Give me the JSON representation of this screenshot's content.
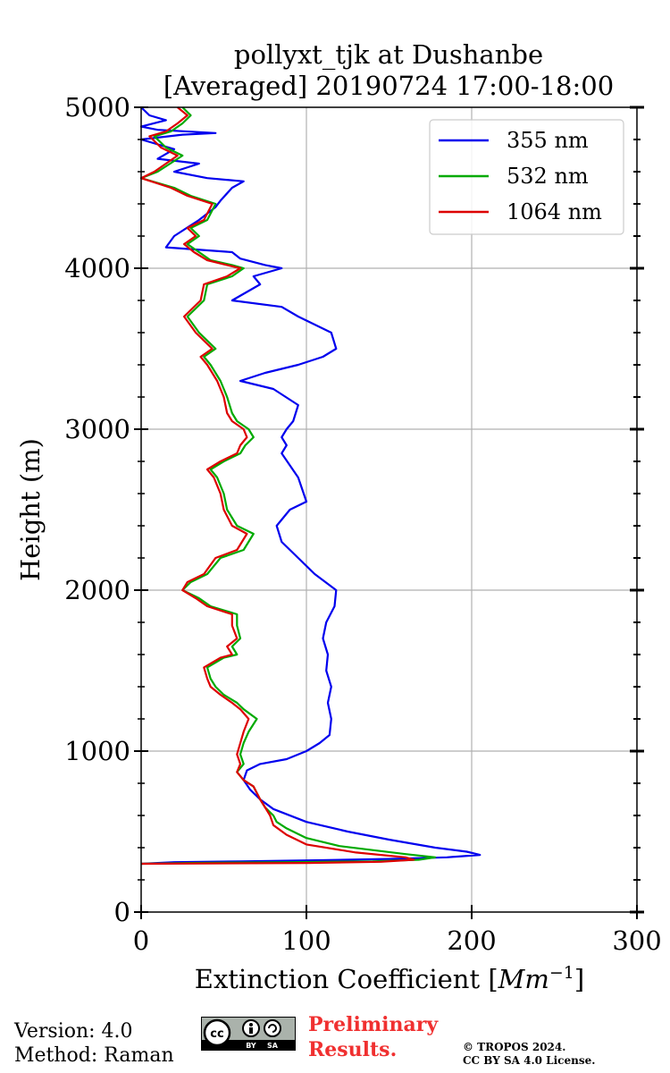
{
  "chart_data": {
    "type": "line",
    "title_line1": "pollyxt_tjk at Dushanbe",
    "title_line2": "[Averaged] 20190724 17:00-18:00",
    "xlabel": "Extinction Coefficient [",
    "xlabel_unit": "Mm",
    "xlabel_exp": "−1",
    "xlabel_close": "]",
    "ylabel": "Height (m)",
    "xlim": [
      0,
      300
    ],
    "ylim": [
      0,
      5000
    ],
    "xticks": [
      0,
      100,
      200,
      300
    ],
    "xtick_labels": [
      "0",
      "100",
      "200",
      "300"
    ],
    "yticks": [
      0,
      1000,
      2000,
      3000,
      4000,
      5000
    ],
    "ytick_labels": [
      "0",
      "1000",
      "2000",
      "3000",
      "4000",
      "5000"
    ],
    "grid": true,
    "legend_position": "top-right",
    "series": [
      {
        "name": "355 nm",
        "color": "#0000ee",
        "points": [
          [
            0,
            300
          ],
          [
            20,
            310
          ],
          [
            60,
            315
          ],
          [
            110,
            322
          ],
          [
            150,
            330
          ],
          [
            185,
            340
          ],
          [
            205,
            355
          ],
          [
            197,
            375
          ],
          [
            178,
            400
          ],
          [
            150,
            450
          ],
          [
            125,
            500
          ],
          [
            100,
            560
          ],
          [
            80,
            640
          ],
          [
            72,
            700
          ],
          [
            66,
            760
          ],
          [
            62,
            820
          ],
          [
            64,
            880
          ],
          [
            72,
            920
          ],
          [
            88,
            950
          ],
          [
            100,
            1000
          ],
          [
            108,
            1050
          ],
          [
            114,
            1100
          ],
          [
            115,
            1200
          ],
          [
            113,
            1300
          ],
          [
            115,
            1400
          ],
          [
            112,
            1500
          ],
          [
            113,
            1600
          ],
          [
            110,
            1700
          ],
          [
            112,
            1800
          ],
          [
            117,
            1900
          ],
          [
            118,
            2000
          ],
          [
            105,
            2100
          ],
          [
            95,
            2200
          ],
          [
            85,
            2300
          ],
          [
            82,
            2400
          ],
          [
            90,
            2500
          ],
          [
            100,
            2550
          ],
          [
            95,
            2700
          ],
          [
            85,
            2850
          ],
          [
            88,
            2900
          ],
          [
            85,
            2950
          ],
          [
            88,
            3000
          ],
          [
            92,
            3050
          ],
          [
            95,
            3150
          ],
          [
            80,
            3250
          ],
          [
            60,
            3300
          ],
          [
            75,
            3350
          ],
          [
            95,
            3400
          ],
          [
            110,
            3450
          ],
          [
            118,
            3500
          ],
          [
            115,
            3600
          ],
          [
            95,
            3700
          ],
          [
            85,
            3760
          ],
          [
            55,
            3800
          ],
          [
            72,
            3900
          ],
          [
            68,
            3950
          ],
          [
            85,
            4000
          ],
          [
            75,
            4020
          ],
          [
            60,
            4060
          ],
          [
            55,
            4100
          ],
          [
            15,
            4130
          ],
          [
            20,
            4200
          ],
          [
            35,
            4300
          ],
          [
            45,
            4380
          ],
          [
            48,
            4420
          ],
          [
            55,
            4500
          ],
          [
            62,
            4540
          ],
          [
            40,
            4560
          ],
          [
            20,
            4600
          ],
          [
            35,
            4650
          ],
          [
            10,
            4680
          ],
          [
            20,
            4740
          ],
          [
            0,
            4800
          ],
          [
            25,
            4830
          ],
          [
            45,
            4840
          ],
          [
            10,
            4860
          ],
          [
            0,
            4880
          ],
          [
            15,
            4920
          ],
          [
            5,
            4950
          ],
          [
            0,
            5000
          ]
        ]
      },
      {
        "name": "532 nm",
        "color": "#00aa00",
        "points": [
          [
            0,
            300
          ],
          [
            30,
            305
          ],
          [
            90,
            310
          ],
          [
            140,
            315
          ],
          [
            168,
            325
          ],
          [
            178,
            340
          ],
          [
            160,
            360
          ],
          [
            120,
            410
          ],
          [
            100,
            460
          ],
          [
            88,
            520
          ],
          [
            82,
            560
          ],
          [
            80,
            600
          ],
          [
            75,
            650
          ],
          [
            72,
            700
          ],
          [
            68,
            780
          ],
          [
            62,
            820
          ],
          [
            58,
            870
          ],
          [
            62,
            920
          ],
          [
            60,
            980
          ],
          [
            62,
            1050
          ],
          [
            65,
            1120
          ],
          [
            70,
            1200
          ],
          [
            62,
            1260
          ],
          [
            58,
            1300
          ],
          [
            50,
            1350
          ],
          [
            45,
            1400
          ],
          [
            42,
            1450
          ],
          [
            40,
            1520
          ],
          [
            50,
            1580
          ],
          [
            58,
            1600
          ],
          [
            55,
            1650
          ],
          [
            60,
            1700
          ],
          [
            58,
            1780
          ],
          [
            58,
            1850
          ],
          [
            42,
            1900
          ],
          [
            35,
            1950
          ],
          [
            25,
            2000
          ],
          [
            30,
            2050
          ],
          [
            40,
            2100
          ],
          [
            48,
            2200
          ],
          [
            62,
            2250
          ],
          [
            68,
            2350
          ],
          [
            58,
            2400
          ],
          [
            52,
            2500
          ],
          [
            50,
            2600
          ],
          [
            46,
            2700
          ],
          [
            42,
            2750
          ],
          [
            50,
            2800
          ],
          [
            60,
            2850
          ],
          [
            63,
            2900
          ],
          [
            68,
            2950
          ],
          [
            65,
            3000
          ],
          [
            58,
            3050
          ],
          [
            55,
            3100
          ],
          [
            52,
            3200
          ],
          [
            48,
            3300
          ],
          [
            42,
            3400
          ],
          [
            38,
            3450
          ],
          [
            45,
            3500
          ],
          [
            35,
            3600
          ],
          [
            28,
            3700
          ],
          [
            38,
            3800
          ],
          [
            40,
            3900
          ],
          [
            55,
            3950
          ],
          [
            62,
            4000
          ],
          [
            55,
            4020
          ],
          [
            42,
            4050
          ],
          [
            35,
            4100
          ],
          [
            28,
            4150
          ],
          [
            35,
            4200
          ],
          [
            30,
            4250
          ],
          [
            40,
            4300
          ],
          [
            45,
            4400
          ],
          [
            30,
            4450
          ],
          [
            20,
            4500
          ],
          [
            0,
            4560
          ],
          [
            10,
            4600
          ],
          [
            25,
            4700
          ],
          [
            15,
            4750
          ],
          [
            8,
            4820
          ],
          [
            18,
            4850
          ],
          [
            25,
            4900
          ],
          [
            30,
            4950
          ],
          [
            25,
            5000
          ]
        ]
      },
      {
        "name": "1064 nm",
        "color": "#dd0000",
        "points": [
          [
            0,
            300
          ],
          [
            40,
            302
          ],
          [
            100,
            305
          ],
          [
            145,
            312
          ],
          [
            165,
            325
          ],
          [
            160,
            340
          ],
          [
            130,
            370
          ],
          [
            100,
            420
          ],
          [
            88,
            480
          ],
          [
            80,
            540
          ],
          [
            78,
            600
          ],
          [
            75,
            650
          ],
          [
            72,
            700
          ],
          [
            68,
            780
          ],
          [
            62,
            820
          ],
          [
            58,
            870
          ],
          [
            60,
            920
          ],
          [
            58,
            980
          ],
          [
            60,
            1050
          ],
          [
            62,
            1120
          ],
          [
            65,
            1200
          ],
          [
            60,
            1260
          ],
          [
            55,
            1300
          ],
          [
            48,
            1350
          ],
          [
            42,
            1400
          ],
          [
            40,
            1450
          ],
          [
            38,
            1520
          ],
          [
            48,
            1580
          ],
          [
            55,
            1600
          ],
          [
            52,
            1650
          ],
          [
            58,
            1700
          ],
          [
            55,
            1780
          ],
          [
            55,
            1850
          ],
          [
            40,
            1900
          ],
          [
            33,
            1950
          ],
          [
            25,
            2000
          ],
          [
            28,
            2050
          ],
          [
            38,
            2100
          ],
          [
            45,
            2200
          ],
          [
            58,
            2250
          ],
          [
            64,
            2350
          ],
          [
            55,
            2400
          ],
          [
            50,
            2500
          ],
          [
            48,
            2600
          ],
          [
            44,
            2700
          ],
          [
            40,
            2750
          ],
          [
            48,
            2800
          ],
          [
            58,
            2850
          ],
          [
            60,
            2900
          ],
          [
            64,
            2950
          ],
          [
            62,
            3000
          ],
          [
            55,
            3050
          ],
          [
            52,
            3100
          ],
          [
            50,
            3200
          ],
          [
            46,
            3300
          ],
          [
            40,
            3400
          ],
          [
            36,
            3450
          ],
          [
            43,
            3500
          ],
          [
            33,
            3600
          ],
          [
            26,
            3700
          ],
          [
            36,
            3800
          ],
          [
            38,
            3900
          ],
          [
            52,
            3950
          ],
          [
            60,
            4000
          ],
          [
            52,
            4020
          ],
          [
            40,
            4050
          ],
          [
            32,
            4100
          ],
          [
            26,
            4150
          ],
          [
            33,
            4200
          ],
          [
            28,
            4250
          ],
          [
            38,
            4300
          ],
          [
            43,
            4400
          ],
          [
            28,
            4450
          ],
          [
            18,
            4500
          ],
          [
            0,
            4560
          ],
          [
            8,
            4600
          ],
          [
            22,
            4700
          ],
          [
            12,
            4750
          ],
          [
            5,
            4820
          ],
          [
            15,
            4850
          ],
          [
            22,
            4900
          ],
          [
            28,
            4950
          ],
          [
            22,
            5000
          ]
        ]
      }
    ]
  },
  "footer": {
    "version": "Version: 4.0",
    "method": "Method: Raman",
    "preliminary_line1": "Preliminary",
    "preliminary_line2": "Results.",
    "copyright_line1": "© TROPOS 2024.",
    "copyright_line2": "CC BY SA 4.0 License.",
    "cc_by": "BY",
    "cc_sa": "SA"
  }
}
